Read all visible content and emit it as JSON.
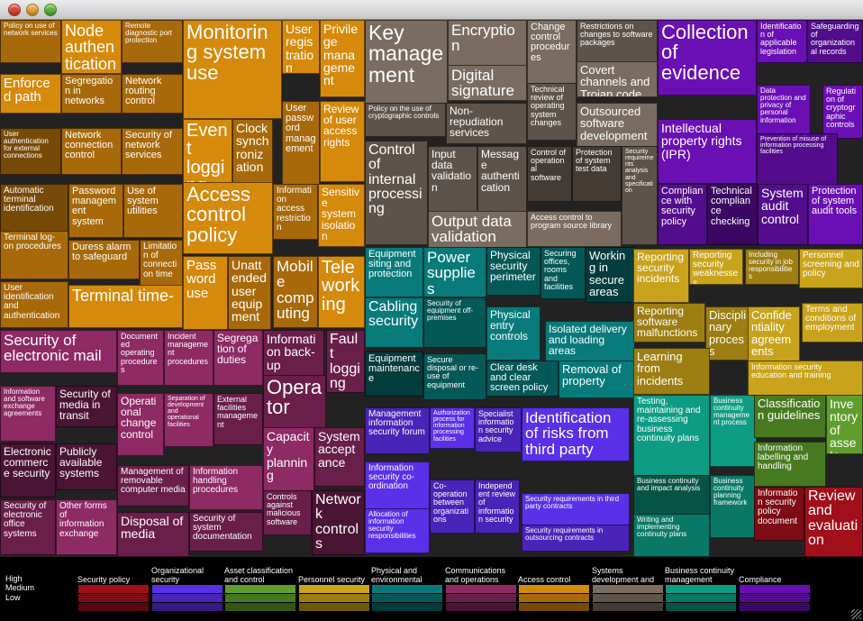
{
  "chart_data": {
    "type": "treemap",
    "priority_levels": [
      "High",
      "Medium",
      "Low"
    ],
    "categories": [
      {
        "name": "Security policy",
        "colors": [
          "#a10f1a",
          "#7d0c14",
          "#5a080e"
        ]
      },
      {
        "name": "Organizational security",
        "colors": [
          "#5a30e8",
          "#4a24b8",
          "#351a85"
        ]
      },
      {
        "name": "Asset classification and control",
        "colors": [
          "#5f9e2d",
          "#477a20",
          "#325815"
        ]
      },
      {
        "name": "Personnel security",
        "colors": [
          "#c9a31c",
          "#9c7e12",
          "#6e590c"
        ]
      },
      {
        "name": "Physical and environmental",
        "colors": [
          "#087a7a",
          "#055858",
          "#033c3c"
        ]
      },
      {
        "name": "Communications and operations",
        "colors": [
          "#8e2a64",
          "#6a1e4a",
          "#4a1434"
        ]
      },
      {
        "name": "Access control",
        "colors": [
          "#d68a0c",
          "#a8690a",
          "#764a06"
        ]
      },
      {
        "name": "Systems development and",
        "colors": [
          "#7a6c60",
          "#5e534a",
          "#433b34"
        ]
      },
      {
        "name": "Business continuity management",
        "colors": [
          "#0e9c84",
          "#0a7866",
          "#075446"
        ]
      },
      {
        "name": "Compliance",
        "colors": [
          "#6a0fb4",
          "#520c8c",
          "#3a0862"
        ]
      }
    ],
    "cells": [
      {
        "label": "Policy on use of network services",
        "cat": 6,
        "pri": 1
      },
      {
        "label": "Node authentication",
        "cat": 6,
        "pri": 0
      },
      {
        "label": "Remote diagnostic port protection",
        "cat": 6,
        "pri": 1
      },
      {
        "label": "Enforced path",
        "cat": 6,
        "pri": 0
      },
      {
        "label": "Segregation in networks",
        "cat": 6,
        "pri": 1
      },
      {
        "label": "Network routing control",
        "cat": 6,
        "pri": 1
      },
      {
        "label": "User authentication for external connections",
        "cat": 6,
        "pri": 2
      },
      {
        "label": "Network connection control",
        "cat": 6,
        "pri": 1
      },
      {
        "label": "Security of network services",
        "cat": 6,
        "pri": 1
      },
      {
        "label": "Automatic terminal identification",
        "cat": 6,
        "pri": 2
      },
      {
        "label": "Password management system",
        "cat": 6,
        "pri": 1
      },
      {
        "label": "Use of system utilities",
        "cat": 6,
        "pri": 1
      },
      {
        "label": "Terminal log-on procedures",
        "cat": 6,
        "pri": 1
      },
      {
        "label": "Duress alarm to safeguard",
        "cat": 6,
        "pri": 1
      },
      {
        "label": "Limitation of connection time",
        "cat": 6,
        "pri": 1
      },
      {
        "label": "User identification and authentication",
        "cat": 6,
        "pri": 1
      },
      {
        "label": "Terminal time-",
        "cat": 6,
        "pri": 0
      },
      {
        "label": "Monitoring system use",
        "cat": 6,
        "pri": 0
      },
      {
        "label": "User registration",
        "cat": 6,
        "pri": 0
      },
      {
        "label": "Privilege management",
        "cat": 6,
        "pri": 0
      },
      {
        "label": "Event logging",
        "cat": 6,
        "pri": 0
      },
      {
        "label": "Clock synchronization",
        "cat": 6,
        "pri": 1
      },
      {
        "label": "User password management",
        "cat": 6,
        "pri": 1
      },
      {
        "label": "Review of user access rights",
        "cat": 6,
        "pri": 0
      },
      {
        "label": "Access control policy",
        "cat": 6,
        "pri": 0
      },
      {
        "label": "Information access restriction",
        "cat": 6,
        "pri": 1
      },
      {
        "label": "Sensitive system isolation",
        "cat": 6,
        "pri": 0
      },
      {
        "label": "Password use",
        "cat": 6,
        "pri": 0
      },
      {
        "label": "Unattended user equipment",
        "cat": 6,
        "pri": 1
      },
      {
        "label": "Mobile computing",
        "cat": 6,
        "pri": 1
      },
      {
        "label": "Teleworking",
        "cat": 6,
        "pri": 0
      },
      {
        "label": "Key management",
        "cat": 7,
        "pri": 0
      },
      {
        "label": "Encryption",
        "cat": 7,
        "pri": 0
      },
      {
        "label": "Digital signature",
        "cat": 7,
        "pri": 0
      },
      {
        "label": "Policy on the use of cryptographic controls",
        "cat": 7,
        "pri": 1
      },
      {
        "label": "Non-repudiation services",
        "cat": 7,
        "pri": 1
      },
      {
        "label": "Change control procedures",
        "cat": 7,
        "pri": 0
      },
      {
        "label": "Restrictions on changes to software packages",
        "cat": 7,
        "pri": 1
      },
      {
        "label": "Covert channels and Trojan code",
        "cat": 7,
        "pri": 0
      },
      {
        "label": "Outsourced software development",
        "cat": 7,
        "pri": 0
      },
      {
        "label": "Technical review of operating system changes",
        "cat": 7,
        "pri": 1
      },
      {
        "label": "Control of internal processing",
        "cat": 7,
        "pri": 1
      },
      {
        "label": "Input data validation",
        "cat": 7,
        "pri": 1
      },
      {
        "label": "Message authentication",
        "cat": 7,
        "pri": 1
      },
      {
        "label": "Control of operational software",
        "cat": 7,
        "pri": 2
      },
      {
        "label": "Protection of system test data",
        "cat": 7,
        "pri": 2
      },
      {
        "label": "Security requirements analysis and specification",
        "cat": 7,
        "pri": 1
      },
      {
        "label": "Output data validation",
        "cat": 7,
        "pri": 0
      },
      {
        "label": "Access control to program source library",
        "cat": 7,
        "pri": 0
      },
      {
        "label": "Collection of evidence",
        "cat": 9,
        "pri": 0
      },
      {
        "label": "Identification of applicable legislation",
        "cat": 9,
        "pri": 0
      },
      {
        "label": "Safeguarding of organizational records",
        "cat": 9,
        "pri": 1
      },
      {
        "label": "Data protection and privacy of personal information",
        "cat": 9,
        "pri": 0
      },
      {
        "label": "Regulation of cryptographic controls",
        "cat": 9,
        "pri": 0
      },
      {
        "label": "Intellectual property rights (IPR)",
        "cat": 9,
        "pri": 0
      },
      {
        "label": "Prevention of misuse of information processing facilities",
        "cat": 9,
        "pri": 1
      },
      {
        "label": "Compliance with security policy",
        "cat": 9,
        "pri": 1
      },
      {
        "label": "Technical compliance checking",
        "cat": 9,
        "pri": 2
      },
      {
        "label": "System audit control",
        "cat": 9,
        "pri": 1
      },
      {
        "label": "Protection of system audit tools",
        "cat": 9,
        "pri": 0
      },
      {
        "label": "Equipment siting and protection",
        "cat": 4,
        "pri": 0
      },
      {
        "label": "Power supplies",
        "cat": 4,
        "pri": 0
      },
      {
        "label": "Physical security perimeter",
        "cat": 4,
        "pri": 1
      },
      {
        "label": "Securing offices, rooms and facilities",
        "cat": 4,
        "pri": 1
      },
      {
        "label": "Working in secure areas",
        "cat": 4,
        "pri": 2
      },
      {
        "label": "Cabling security",
        "cat": 4,
        "pri": 0
      },
      {
        "label": "Security of equipment off-premises",
        "cat": 4,
        "pri": 1
      },
      {
        "label": "Physical entry controls",
        "cat": 4,
        "pri": 0
      },
      {
        "label": "Isolated delivery and loading areas",
        "cat": 4,
        "pri": 0
      },
      {
        "label": "Equipment maintenance",
        "cat": 4,
        "pri": 2
      },
      {
        "label": "Secure disposal or re-use of equipment",
        "cat": 4,
        "pri": 1
      },
      {
        "label": "Clear desk and clear screen policy",
        "cat": 4,
        "pri": 1
      },
      {
        "label": "Removal of property",
        "cat": 4,
        "pri": 0
      },
      {
        "label": "Reporting security incidents",
        "cat": 3,
        "pri": 0
      },
      {
        "label": "Reporting security weaknesses",
        "cat": 3,
        "pri": 0
      },
      {
        "label": "Including security in job responsibilities",
        "cat": 3,
        "pri": 1
      },
      {
        "label": "Personnel screening and policy",
        "cat": 3,
        "pri": 0
      },
      {
        "label": "Reporting software malfunctions",
        "cat": 3,
        "pri": 1
      },
      {
        "label": "Disciplinary process",
        "cat": 3,
        "pri": 1
      },
      {
        "label": "Confidentiality agreements",
        "cat": 3,
        "pri": 0
      },
      {
        "label": "Terms and conditions of employment",
        "cat": 3,
        "pri": 0
      },
      {
        "label": "Learning from incidents",
        "cat": 3,
        "pri": 1
      },
      {
        "label": "Information security education and training",
        "cat": 3,
        "pri": 0
      },
      {
        "label": "Security of electronic mail",
        "cat": 5,
        "pri": 0
      },
      {
        "label": "Documented operating procedures",
        "cat": 5,
        "pri": 0
      },
      {
        "label": "Incident management procedures",
        "cat": 5,
        "pri": 0
      },
      {
        "label": "Segregation of duties",
        "cat": 5,
        "pri": 0
      },
      {
        "label": "Information back-up",
        "cat": 5,
        "pri": 1
      },
      {
        "label": "Fault logging",
        "cat": 5,
        "pri": 1
      },
      {
        "label": "Information and software exchange agreements",
        "cat": 5,
        "pri": 0
      },
      {
        "label": "Security of media in transit",
        "cat": 5,
        "pri": 2
      },
      {
        "label": "Operational change control",
        "cat": 5,
        "pri": 0
      },
      {
        "label": "Separation of development and operational facilities",
        "cat": 5,
        "pri": 0
      },
      {
        "label": "External facilities management",
        "cat": 5,
        "pri": 1
      },
      {
        "label": "Operator",
        "cat": 5,
        "pri": 1
      },
      {
        "label": "Electronic commerce security",
        "cat": 5,
        "pri": 2
      },
      {
        "label": "Publicly available systems",
        "cat": 5,
        "pri": 2
      },
      {
        "label": "Capacity planning",
        "cat": 5,
        "pri": 0
      },
      {
        "label": "System acceptance",
        "cat": 5,
        "pri": 1
      },
      {
        "label": "Management of removable computer media",
        "cat": 5,
        "pri": 1
      },
      {
        "label": "Information handling procedures",
        "cat": 5,
        "pri": 0
      },
      {
        "label": "Controls against malicious software",
        "cat": 5,
        "pri": 1
      },
      {
        "label": "Network controls",
        "cat": 5,
        "pri": 2
      },
      {
        "label": "Security of electronic office systems",
        "cat": 5,
        "pri": 1
      },
      {
        "label": "Other forms of information exchange",
        "cat": 5,
        "pri": 0
      },
      {
        "label": "Disposal of media",
        "cat": 5,
        "pri": 1
      },
      {
        "label": "Security of system documentation",
        "cat": 5,
        "pri": 1
      },
      {
        "label": "Management information security forum",
        "cat": 1,
        "pri": 1
      },
      {
        "label": "Authorization process for information processing facilities",
        "cat": 1,
        "pri": 0
      },
      {
        "label": "Specialist information security advice",
        "cat": 1,
        "pri": 1
      },
      {
        "label": "Identification of risks from third party access",
        "cat": 1,
        "pri": 0
      },
      {
        "label": "Information security co-ordination",
        "cat": 1,
        "pri": 0
      },
      {
        "label": "Co-operation between organizations",
        "cat": 1,
        "pri": 1
      },
      {
        "label": "Independent review of information security",
        "cat": 1,
        "pri": 1
      },
      {
        "label": "Security requirements in third party contracts",
        "cat": 1,
        "pri": 0
      },
      {
        "label": "Allocation of information security responsibilities",
        "cat": 1,
        "pri": 0
      },
      {
        "label": "Security requirements in outsourcing contracts",
        "cat": 1,
        "pri": 1
      },
      {
        "label": "Testing, maintaining and re-assessing business continuity plans",
        "cat": 8,
        "pri": 0
      },
      {
        "label": "Business continuity management process",
        "cat": 8,
        "pri": 0
      },
      {
        "label": "Business continuity and impact analysis",
        "cat": 8,
        "pri": 2
      },
      {
        "label": "Business continuity planning framework",
        "cat": 8,
        "pri": 1
      },
      {
        "label": "Writing and implementing continuity plans",
        "cat": 8,
        "pri": 1
      },
      {
        "label": "Classification guidelines",
        "cat": 2,
        "pri": 1
      },
      {
        "label": "Inventory of assets",
        "cat": 2,
        "pri": 0
      },
      {
        "label": "Information labelling and handling",
        "cat": 2,
        "pri": 1
      },
      {
        "label": "Information security policy document",
        "cat": 0,
        "pri": 1
      },
      {
        "label": "Review and evaluation",
        "cat": 0,
        "pri": 0
      }
    ]
  }
}
